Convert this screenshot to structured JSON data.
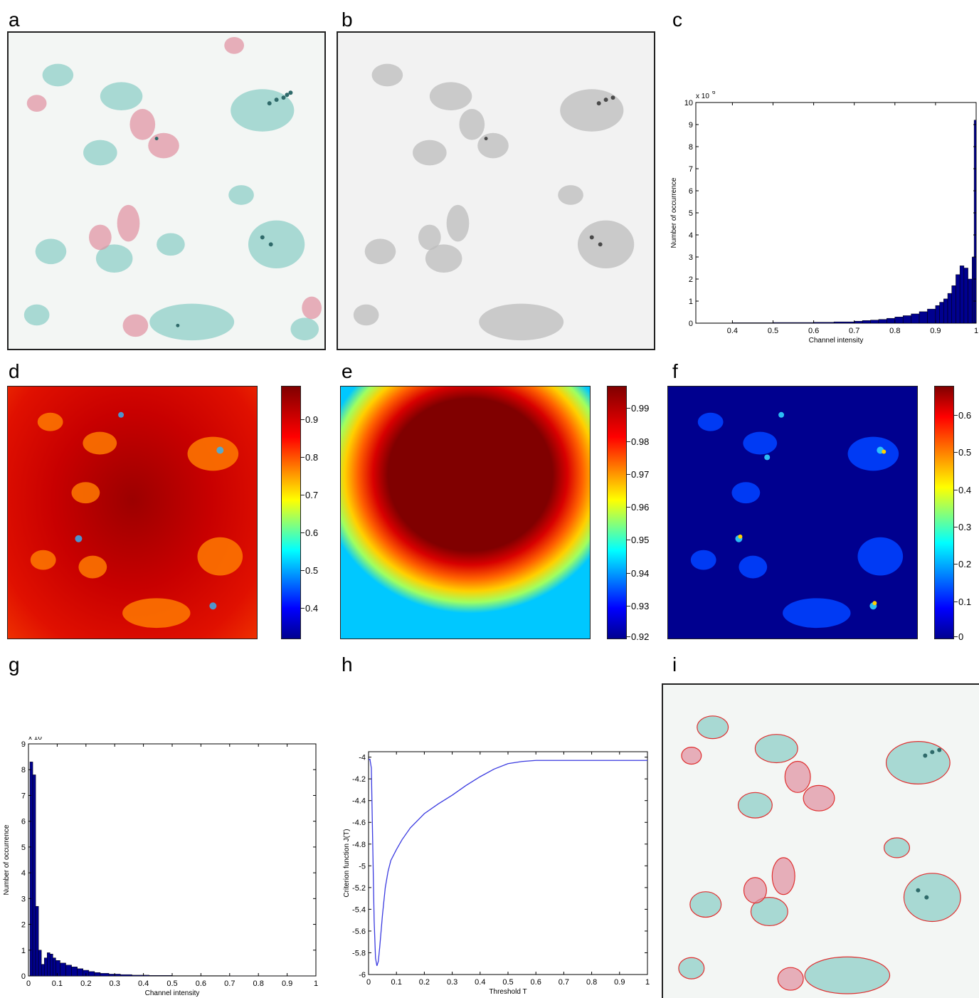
{
  "panels": {
    "a": "a",
    "b": "b",
    "c": "c",
    "d": "d",
    "e": "e",
    "f": "f",
    "g": "g",
    "h": "h",
    "i": "i"
  },
  "colorbars": {
    "d": {
      "ticks": [
        "0.9",
        "0.8",
        "0.7",
        "0.6",
        "0.5",
        "0.4"
      ],
      "values": [
        0.9,
        0.8,
        0.7,
        0.6,
        0.5,
        0.4
      ],
      "min": 0.32,
      "max": 0.99
    },
    "e": {
      "ticks": [
        "0.99",
        "0.98",
        "0.97",
        "0.96",
        "0.95",
        "0.94",
        "0.93",
        "0.92"
      ],
      "values": [
        0.99,
        0.98,
        0.97,
        0.96,
        0.95,
        0.94,
        0.93,
        0.92
      ],
      "min": 0.92,
      "max": 0.997
    },
    "f": {
      "ticks": [
        "0.6",
        "0.5",
        "0.4",
        "0.3",
        "0.2",
        "0.1",
        "0"
      ],
      "values": [
        0.6,
        0.5,
        0.4,
        0.3,
        0.2,
        0.1,
        0
      ],
      "min": 0,
      "max": 0.68
    }
  },
  "chart_data": [
    {
      "panel": "c",
      "type": "bar",
      "xlabel": "Channel intensity",
      "ylabel": "Number of occurrence",
      "exponent_label": "x 10",
      "exponent": "6",
      "xlim": [
        0.31,
        1.0
      ],
      "ylim": [
        0,
        10
      ],
      "xticks": [
        "0.4",
        "0.5",
        "0.6",
        "0.7",
        "0.8",
        "0.9",
        "1"
      ],
      "xtick_values": [
        0.4,
        0.5,
        0.6,
        0.7,
        0.8,
        0.9,
        1.0
      ],
      "yticks": [
        "0",
        "1",
        "2",
        "3",
        "4",
        "5",
        "6",
        "7",
        "8",
        "9",
        "10"
      ],
      "ytick_values": [
        0,
        1,
        2,
        3,
        4,
        5,
        6,
        7,
        8,
        9,
        10
      ],
      "bar_color": "#00008f",
      "x": [
        0.32,
        0.4,
        0.5,
        0.6,
        0.65,
        0.7,
        0.72,
        0.74,
        0.76,
        0.78,
        0.8,
        0.82,
        0.84,
        0.86,
        0.88,
        0.9,
        0.91,
        0.92,
        0.93,
        0.94,
        0.95,
        0.96,
        0.97,
        0.98,
        0.99,
        0.995
      ],
      "values": [
        0.01,
        0.02,
        0.03,
        0.04,
        0.06,
        0.09,
        0.12,
        0.14,
        0.17,
        0.22,
        0.28,
        0.34,
        0.42,
        0.52,
        0.64,
        0.8,
        0.95,
        1.1,
        1.35,
        1.7,
        2.2,
        2.6,
        2.5,
        2.0,
        3.0,
        9.2
      ]
    },
    {
      "panel": "g",
      "type": "bar",
      "xlabel": "Channel intensity",
      "ylabel": "Number of occurrence",
      "exponent_label": "x 10",
      "exponent": "5",
      "xlim": [
        0,
        1
      ],
      "ylim": [
        0,
        9
      ],
      "xticks": [
        "0",
        "0.1",
        "0.2",
        "0.3",
        "0.4",
        "0.5",
        "0.6",
        "0.7",
        "0.8",
        "0.9",
        "1"
      ],
      "xtick_values": [
        0,
        0.1,
        0.2,
        0.3,
        0.4,
        0.5,
        0.6,
        0.7,
        0.8,
        0.9,
        1.0
      ],
      "yticks": [
        "0",
        "1",
        "2",
        "3",
        "4",
        "5",
        "6",
        "7",
        "8",
        "9"
      ],
      "ytick_values": [
        0,
        1,
        2,
        3,
        4,
        5,
        6,
        7,
        8,
        9
      ],
      "bar_color": "#00008f",
      "x": [
        0.005,
        0.015,
        0.025,
        0.035,
        0.045,
        0.055,
        0.065,
        0.075,
        0.085,
        0.095,
        0.11,
        0.13,
        0.15,
        0.17,
        0.19,
        0.21,
        0.23,
        0.25,
        0.28,
        0.32,
        0.36,
        0.42,
        0.5,
        0.6,
        0.69
      ],
      "values": [
        8.3,
        7.8,
        2.7,
        1.0,
        0.45,
        0.7,
        0.9,
        0.85,
        0.7,
        0.6,
        0.5,
        0.42,
        0.35,
        0.28,
        0.22,
        0.17,
        0.13,
        0.1,
        0.07,
        0.05,
        0.03,
        0.02,
        0.01,
        0.01,
        0.005
      ]
    },
    {
      "panel": "h",
      "type": "line",
      "xlabel": "Threshold T",
      "ylabel": "Criterion function J(T)",
      "xlim": [
        0,
        1
      ],
      "ylim": [
        -6,
        -3.95
      ],
      "xticks": [
        "0",
        "0.1",
        "0.2",
        "0.3",
        "0.4",
        "0.5",
        "0.6",
        "0.7",
        "0.8",
        "0.9",
        "1"
      ],
      "xtick_values": [
        0,
        0.1,
        0.2,
        0.3,
        0.4,
        0.5,
        0.6,
        0.7,
        0.8,
        0.9,
        1.0
      ],
      "yticks": [
        "-4",
        "-4.2",
        "-4.4",
        "-4.6",
        "-4.8",
        "-5",
        "-5.2",
        "-5.4",
        "-5.6",
        "-5.8",
        "-6"
      ],
      "ytick_values": [
        -4,
        -4.2,
        -4.4,
        -4.6,
        -4.8,
        -5,
        -5.2,
        -5.4,
        -5.6,
        -5.8,
        -6
      ],
      "line_color": "#3a3ae0",
      "x": [
        0.0,
        0.005,
        0.01,
        0.015,
        0.02,
        0.025,
        0.03,
        0.035,
        0.04,
        0.05,
        0.06,
        0.07,
        0.08,
        0.1,
        0.12,
        0.15,
        0.2,
        0.25,
        0.3,
        0.35,
        0.4,
        0.45,
        0.5,
        0.55,
        0.6,
        0.65,
        0.7,
        0.8,
        0.9,
        1.0
      ],
      "values": [
        -4.02,
        -4.02,
        -4.1,
        -4.8,
        -5.5,
        -5.85,
        -5.92,
        -5.88,
        -5.75,
        -5.45,
        -5.2,
        -5.05,
        -4.95,
        -4.85,
        -4.76,
        -4.65,
        -4.52,
        -4.43,
        -4.35,
        -4.26,
        -4.18,
        -4.11,
        -4.06,
        -4.04,
        -4.03,
        -4.03,
        -4.03,
        -4.03,
        -4.03,
        -4.03
      ]
    }
  ]
}
